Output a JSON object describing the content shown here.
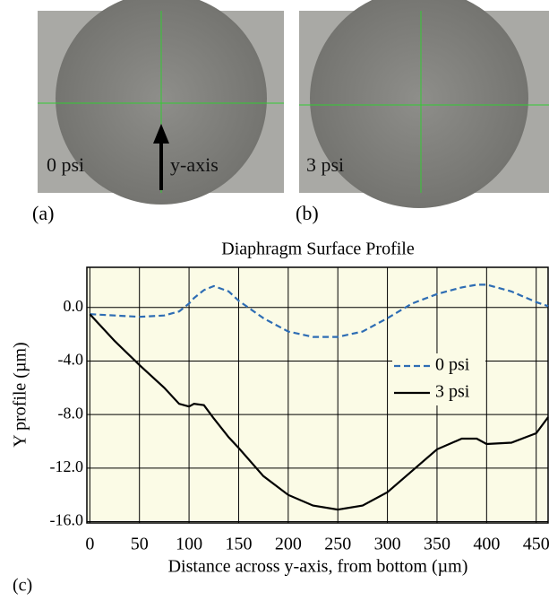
{
  "photos": [
    {
      "label": "(a)",
      "overlay": "0 psi",
      "arrow_label": "y-axis"
    },
    {
      "label": "(b)",
      "overlay": "3 psi"
    }
  ],
  "chart_label": "(c)",
  "chart_data": {
    "type": "line",
    "title": "Diaphragm Surface Profile",
    "x_label": "Distance across y-axis, from bottom (µm)",
    "y_label": "Y profile (µm)",
    "x": [
      0,
      25,
      50,
      75,
      90,
      100,
      105,
      115,
      125,
      140,
      150,
      175,
      200,
      225,
      250,
      275,
      300,
      325,
      350,
      375,
      390,
      400,
      425,
      450,
      462
    ],
    "series": [
      {
        "name": "0 psi",
        "color": "#2e6db4",
        "dash": true,
        "values": [
          -0.5,
          -0.6,
          -0.7,
          -0.6,
          -0.3,
          0.3,
          0.7,
          1.3,
          1.6,
          1.2,
          0.5,
          -0.8,
          -1.8,
          -2.2,
          -2.2,
          -1.8,
          -0.8,
          0.3,
          1.0,
          1.5,
          1.7,
          1.7,
          1.2,
          0.4,
          0.1
        ]
      },
      {
        "name": "3 psi",
        "color": "#000000",
        "dash": false,
        "values": [
          -0.5,
          -2.5,
          -4.3,
          -6.0,
          -7.2,
          -7.4,
          -7.2,
          -7.3,
          -8.3,
          -9.7,
          -10.5,
          -12.6,
          -14.0,
          -14.8,
          -15.1,
          -14.8,
          -13.8,
          -12.2,
          -10.6,
          -9.8,
          -9.8,
          -10.2,
          -10.1,
          -9.4,
          -8.2
        ]
      }
    ],
    "xlim": [
      -3,
      462
    ],
    "ylim": [
      -16.1,
      3.0
    ],
    "xticks": [
      0,
      50,
      100,
      150,
      200,
      250,
      300,
      350,
      400,
      450
    ],
    "yticks": [
      {
        "value": 0,
        "label": "0.0"
      },
      {
        "value": -4,
        "label": "-4.0"
      },
      {
        "value": -8,
        "label": "-8.0"
      },
      {
        "value": -12,
        "label": "-12.0"
      },
      {
        "value": -16,
        "label": "-16.0"
      }
    ],
    "grid": true
  }
}
